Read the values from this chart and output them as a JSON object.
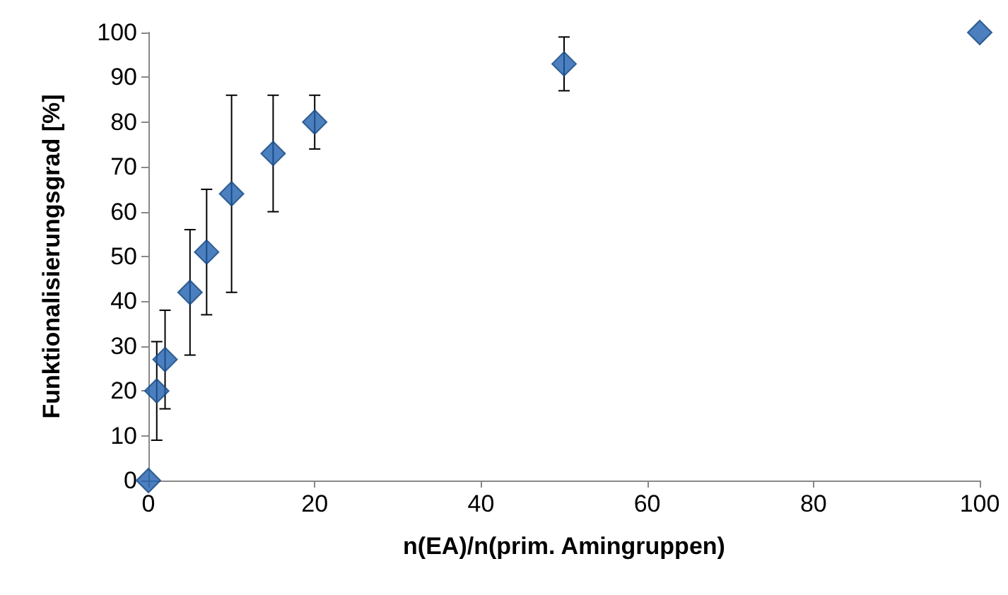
{
  "chart_data": {
    "type": "scatter",
    "xlabel": "n(EA)/n(prim. Amingruppen)",
    "ylabel": "Funktionalisierungsgrad [%]",
    "x": [
      0,
      1,
      2,
      5,
      7,
      10,
      15,
      20,
      50,
      100
    ],
    "values": [
      0,
      20,
      27,
      42,
      51,
      64,
      73,
      80,
      93,
      100
    ],
    "errors": [
      null,
      11,
      11,
      14,
      14,
      22,
      13,
      6,
      6,
      null
    ],
    "color": "#1f5fad",
    "marker": "diamond",
    "grid": false,
    "legend": false,
    "xlim": [
      0,
      100
    ],
    "xticks": [
      0,
      20,
      40,
      60,
      80,
      100
    ],
    "ylim": [
      0,
      100
    ],
    "yticks": [
      0,
      10,
      20,
      30,
      40,
      50,
      60,
      70,
      80,
      90,
      100
    ]
  }
}
